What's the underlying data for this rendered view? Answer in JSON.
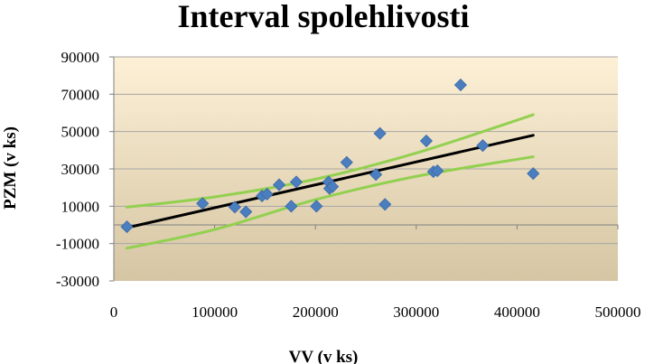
{
  "chart_data": {
    "type": "scatter",
    "title": "Interval spolehlivosti",
    "xlabel": "VV (v ks)",
    "ylabel": "PZM (v ks)",
    "xlim": [
      0,
      500000
    ],
    "ylim": [
      -30000,
      90000
    ],
    "xticks": [
      0,
      100000,
      200000,
      300000,
      400000,
      500000
    ],
    "yticks": [
      -30000,
      -10000,
      10000,
      30000,
      50000,
      70000,
      90000
    ],
    "xtick_labels": [
      "0",
      "100000",
      "200000",
      "300000",
      "400000",
      "500000"
    ],
    "ytick_labels": [
      "-30000",
      "-10000",
      "10000",
      "30000",
      "50000",
      "70000",
      "90000"
    ],
    "grid": "horizontal",
    "background_gradient": [
      "#fdf0d6",
      "#d5c5a3"
    ],
    "series": [
      {
        "kind": "points",
        "color": "#4a7ebf",
        "marker": "diamond",
        "points": [
          [
            13000,
            -1000
          ],
          [
            88000,
            11500
          ],
          [
            120000,
            9500
          ],
          [
            131000,
            7000
          ],
          [
            147000,
            15500
          ],
          [
            152000,
            16500
          ],
          [
            164000,
            21500
          ],
          [
            176000,
            10000
          ],
          [
            181000,
            23000
          ],
          [
            201000,
            10000
          ],
          [
            213000,
            23000
          ],
          [
            214000,
            19500
          ],
          [
            217000,
            20500
          ],
          [
            231000,
            33500
          ],
          [
            260000,
            27000
          ],
          [
            264000,
            49000
          ],
          [
            269000,
            11000
          ],
          [
            310000,
            45000
          ],
          [
            317000,
            28500
          ],
          [
            321000,
            29000
          ],
          [
            344000,
            75000
          ],
          [
            366000,
            42500
          ],
          [
            416000,
            27500
          ]
        ]
      },
      {
        "kind": "line",
        "color": "#000000",
        "points": [
          [
            13000,
            -1500
          ],
          [
            416000,
            48000
          ]
        ]
      },
      {
        "kind": "curve",
        "color": "#92d050",
        "points": [
          [
            13000,
            9500
          ],
          [
            100000,
            15000
          ],
          [
            200000,
            24500
          ],
          [
            300000,
            38500
          ],
          [
            416000,
            59000
          ]
        ]
      },
      {
        "kind": "curve",
        "color": "#92d050",
        "points": [
          [
            13000,
            -12500
          ],
          [
            100000,
            -2500
          ],
          [
            200000,
            13500
          ],
          [
            300000,
            26000
          ],
          [
            416000,
            36500
          ]
        ]
      }
    ]
  }
}
